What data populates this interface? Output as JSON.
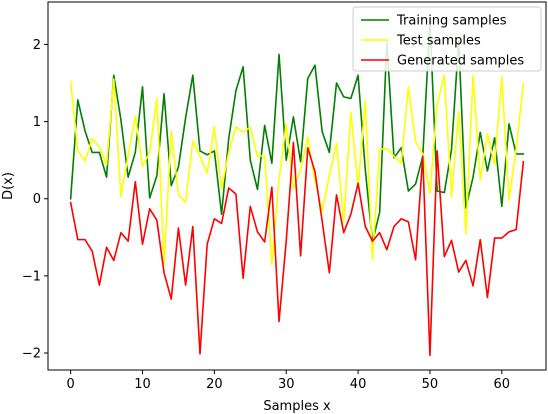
{
  "chart_data": {
    "type": "line",
    "title": "",
    "xlabel": "Samples x",
    "ylabel": "D(x)",
    "xlim": [
      -3.15,
      66.15
    ],
    "ylim": [
      -2.22,
      2.55
    ],
    "xticks": [
      0,
      10,
      20,
      30,
      40,
      50,
      60
    ],
    "yticks": [
      -2,
      -1,
      0,
      1,
      2
    ],
    "grid": false,
    "legend_placement": "top-right",
    "x": [
      0,
      1,
      2,
      3,
      4,
      5,
      6,
      7,
      8,
      9,
      10,
      11,
      12,
      13,
      14,
      15,
      16,
      17,
      18,
      19,
      20,
      21,
      22,
      23,
      24,
      25,
      26,
      27,
      28,
      29,
      30,
      31,
      32,
      33,
      34,
      35,
      36,
      37,
      38,
      39,
      40,
      41,
      42,
      43,
      44,
      45,
      46,
      47,
      48,
      49,
      50,
      51,
      52,
      53,
      54,
      55,
      56,
      57,
      58,
      59,
      60,
      61,
      62,
      63
    ],
    "series": [
      {
        "name": "Training samples",
        "color": "#008000",
        "values": [
          0.0,
          1.28,
          0.88,
          0.6,
          0.6,
          0.28,
          1.6,
          1.02,
          0.28,
          0.6,
          1.45,
          0.01,
          0.3,
          1.36,
          0.17,
          0.41,
          1.05,
          1.6,
          0.62,
          0.57,
          0.62,
          -0.2,
          0.78,
          1.4,
          1.71,
          0.5,
          0.12,
          0.95,
          0.46,
          1.87,
          0.5,
          1.06,
          0.48,
          1.56,
          1.73,
          0.87,
          0.6,
          1.5,
          1.32,
          1.3,
          1.6,
          0.38,
          -0.56,
          -0.18,
          2.03,
          0.53,
          0.66,
          0.1,
          0.19,
          0.55,
          2.3,
          0.1,
          0.08,
          0.64,
          2.05,
          -0.12,
          0.28,
          0.86,
          0.36,
          0.79,
          -0.1,
          0.97,
          0.58,
          0.58
        ]
      },
      {
        "name": "Test samples",
        "color": "#ffff00",
        "values": [
          1.52,
          0.62,
          0.49,
          0.78,
          0.67,
          0.44,
          1.55,
          0.03,
          0.56,
          1.07,
          0.42,
          0.6,
          1.3,
          -0.85,
          0.88,
          0.05,
          -0.05,
          0.75,
          0.55,
          0.33,
          0.93,
          0.13,
          0.6,
          0.93,
          0.86,
          0.93,
          0.55,
          0.56,
          -0.85,
          0.25,
          0.97,
          0.13,
          0.37,
          0.8,
          0.24,
          -0.16,
          0.3,
          0.72,
          -0.3,
          1.12,
          0.14,
          1.27,
          -0.79,
          0.64,
          0.65,
          0.55,
          0.46,
          1.45,
          0.74,
          0.58,
          0.07,
          1.22,
          1.6,
          0.02,
          1.13,
          -0.45,
          1.6,
          0.24,
          0.84,
          0.44,
          1.58,
          -0.02,
          0.65,
          1.49
        ]
      },
      {
        "name": "Generated samples",
        "color": "#ff0000",
        "values": [
          -0.05,
          -0.53,
          -0.53,
          -0.68,
          -1.12,
          -0.63,
          -0.8,
          -0.44,
          -0.55,
          0.22,
          -0.59,
          -0.13,
          -0.28,
          -0.96,
          -1.3,
          -0.38,
          -1.12,
          -0.36,
          -2.01,
          -0.59,
          -0.26,
          -0.32,
          0.14,
          0.06,
          -1.03,
          -0.1,
          -0.43,
          -0.56,
          0.15,
          -1.59,
          -0.55,
          0.73,
          -0.74,
          0.66,
          0.35,
          -0.29,
          -0.96,
          0.05,
          -0.44,
          -0.2,
          0.2,
          -0.36,
          -0.55,
          -0.44,
          -0.66,
          -0.36,
          -0.26,
          -0.3,
          -0.79,
          0.55,
          -2.03,
          0.62,
          -0.75,
          -0.54,
          -0.95,
          -0.8,
          -1.13,
          -0.53,
          -1.28,
          -0.51,
          -0.51,
          -0.43,
          -0.4,
          0.48
        ]
      }
    ]
  }
}
